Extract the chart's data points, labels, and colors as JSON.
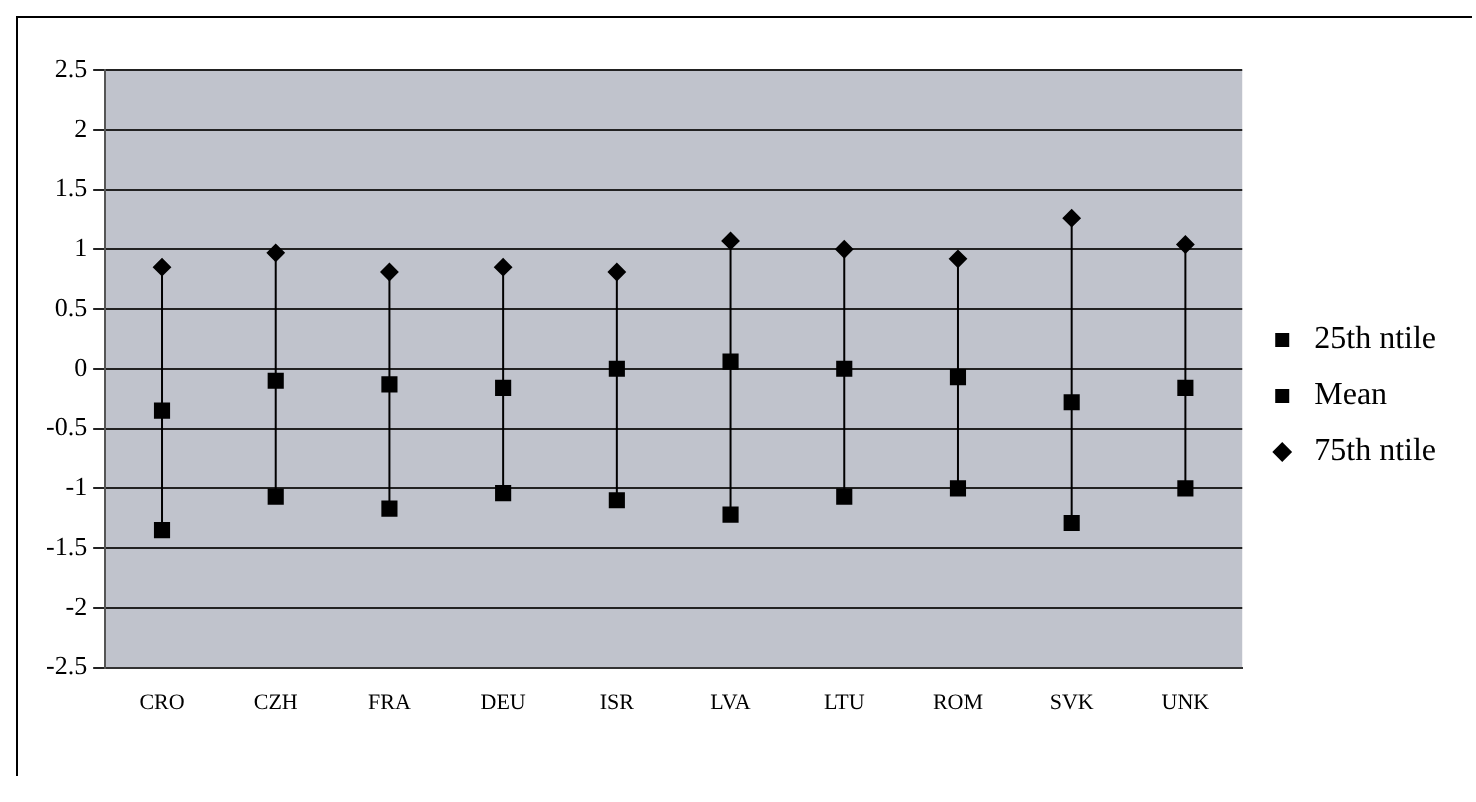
{
  "chart_data": {
    "type": "scatter",
    "categories": [
      "CRO",
      "CZH",
      "FRA",
      "DEU",
      "ISR",
      "LVA",
      "LTU",
      "ROM",
      "SVK",
      "UNK"
    ],
    "series": [
      {
        "name": "25th ntile",
        "color": "#000000",
        "marker": "square",
        "values": [
          -1.35,
          -1.07,
          -1.17,
          -1.04,
          -1.1,
          -1.22,
          -1.07,
          -1.0,
          -1.29,
          -1.0
        ]
      },
      {
        "name": "Mean",
        "color": "#000000",
        "marker": "square",
        "values": [
          -0.35,
          -0.1,
          -0.13,
          -0.16,
          0,
          0.06,
          0,
          -0.07,
          -0.28,
          -0.16
        ]
      },
      {
        "name": "75th ntile",
        "color": "#000000",
        "marker": "diamond",
        "values": [
          0.85,
          0.97,
          0.81,
          0.85,
          0.81,
          1.07,
          1.0,
          0.92,
          1.26,
          1.04
        ]
      }
    ],
    "ylim": [
      -2.5,
      2.5
    ],
    "yticks": [
      -2.5,
      -2,
      -1.5,
      -1,
      -0.5,
      0,
      0.5,
      1,
      1.5,
      2,
      2.5
    ],
    "grid": "y",
    "legend": "right"
  }
}
